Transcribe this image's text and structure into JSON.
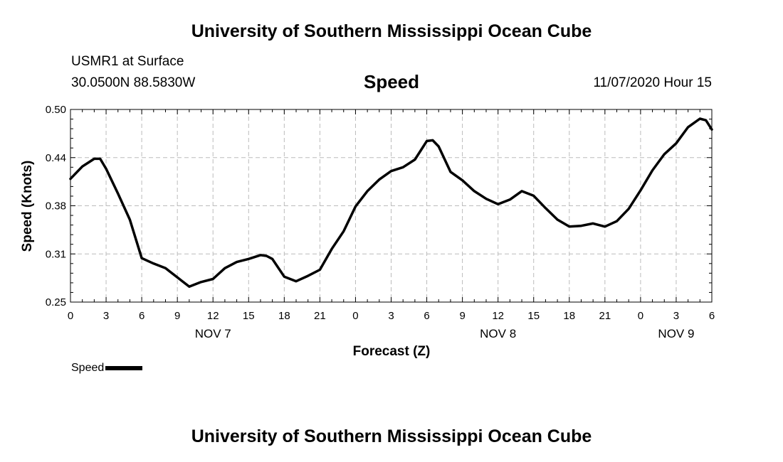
{
  "header": {
    "title": "University of Southern Mississippi Ocean Cube",
    "station": "USMR1 at Surface",
    "coords": "30.0500N 88.5830W",
    "chart_title": "Speed",
    "datetime": "11/07/2020 Hour 15"
  },
  "footer": {
    "title": "University of Southern Mississippi Ocean Cube"
  },
  "legend": {
    "label": "Speed"
  },
  "colors": {
    "line": "#000000",
    "grid": "#bbbbbb",
    "axis": "#000000"
  },
  "chart_data": {
    "type": "line",
    "ylabel": "Speed (Knots)",
    "xlabel": "Forecast (Z)",
    "ylim": [
      0.25,
      0.5
    ],
    "yticks": [
      "0.25",
      "0.31",
      "0.38",
      "0.44",
      "0.50"
    ],
    "xlim": [
      0,
      54
    ],
    "xtick_labels": [
      "0",
      "3",
      "6",
      "9",
      "12",
      "15",
      "18",
      "21",
      "0",
      "3",
      "6",
      "9",
      "12",
      "15",
      "18",
      "21",
      "0",
      "3",
      "6"
    ],
    "day_labels": [
      {
        "label": "NOV 7",
        "hour": 12
      },
      {
        "label": "NOV 8",
        "hour": 36
      },
      {
        "label": "NOV 9",
        "hour": 51
      }
    ],
    "grid": true,
    "legend_position": "bottom-left",
    "series": [
      {
        "name": "Speed",
        "x": [
          0,
          1,
          2,
          2.5,
          3,
          4,
          5,
          6,
          7,
          8,
          9,
          10,
          11,
          12,
          13,
          14,
          15,
          16,
          16.5,
          17,
          18,
          19,
          20,
          21,
          22,
          23,
          24,
          25,
          26,
          27,
          28,
          29,
          30,
          30.5,
          31,
          32,
          33,
          34,
          35,
          36,
          37,
          38,
          39,
          40,
          41,
          42,
          43,
          44,
          45,
          46,
          47,
          48,
          49,
          50,
          51,
          52,
          53,
          53.5,
          54
        ],
        "y": [
          0.41,
          0.426,
          0.436,
          0.436,
          0.423,
          0.391,
          0.357,
          0.307,
          0.3,
          0.294,
          0.282,
          0.27,
          0.276,
          0.28,
          0.294,
          0.302,
          0.306,
          0.311,
          0.31,
          0.306,
          0.283,
          0.277,
          0.284,
          0.292,
          0.319,
          0.342,
          0.374,
          0.394,
          0.409,
          0.42,
          0.425,
          0.435,
          0.459,
          0.46,
          0.452,
          0.419,
          0.408,
          0.394,
          0.384,
          0.377,
          0.383,
          0.394,
          0.388,
          0.372,
          0.357,
          0.348,
          0.349,
          0.352,
          0.348,
          0.355,
          0.371,
          0.395,
          0.421,
          0.442,
          0.456,
          0.477,
          0.488,
          0.486,
          0.474
        ]
      }
    ]
  }
}
